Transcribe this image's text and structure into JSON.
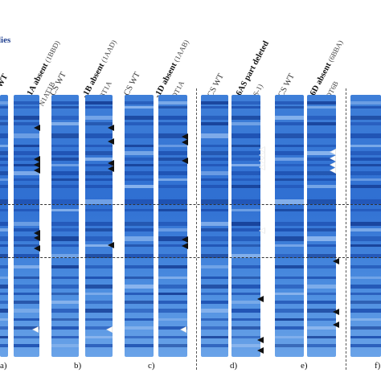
{
  "figure": {
    "title_partial": "lies",
    "panels": [
      {
        "letter": "a)",
        "lanes": [
          {
            "label": "WT",
            "sub": ""
          },
          {
            "label": "-1A absent",
            "sub": "(1BBD)",
            "sub2": "N1AT1B"
          }
        ]
      },
      {
        "letter": "b)",
        "lanes": [
          {
            "label": "CS WT",
            "sub": ""
          },
          {
            "label": "-1B absent",
            "sub": "(1AAD)",
            "sub2": "N1BT1A"
          }
        ]
      },
      {
        "letter": "c)",
        "lanes": [
          {
            "label": "CS WT",
            "sub": ""
          },
          {
            "label": "-1D absent",
            "sub": "(1AAB)",
            "sub2": "N1DT1A"
          }
        ]
      },
      {
        "letter": "d)",
        "lanes": [
          {
            "label": "CS WT",
            "sub": ""
          },
          {
            "label": "-6AS part deleted",
            "sub": "(6AS-1)",
            "sub2": ""
          }
        ]
      },
      {
        "letter": "e)",
        "lanes": [
          {
            "label": "CS WT",
            "sub": ""
          },
          {
            "label": "-6D absent",
            "sub": "(6BBA)",
            "sub2": "N6DT6B"
          }
        ]
      },
      {
        "letter": "f)",
        "lanes": []
      }
    ]
  },
  "colors": {
    "gel_blue": "#2f6fd2",
    "band_dark": "#163f96",
    "marker_black": "#111111",
    "marker_white": "#e8e8e8",
    "title_blue": "#1f3f8f"
  }
}
